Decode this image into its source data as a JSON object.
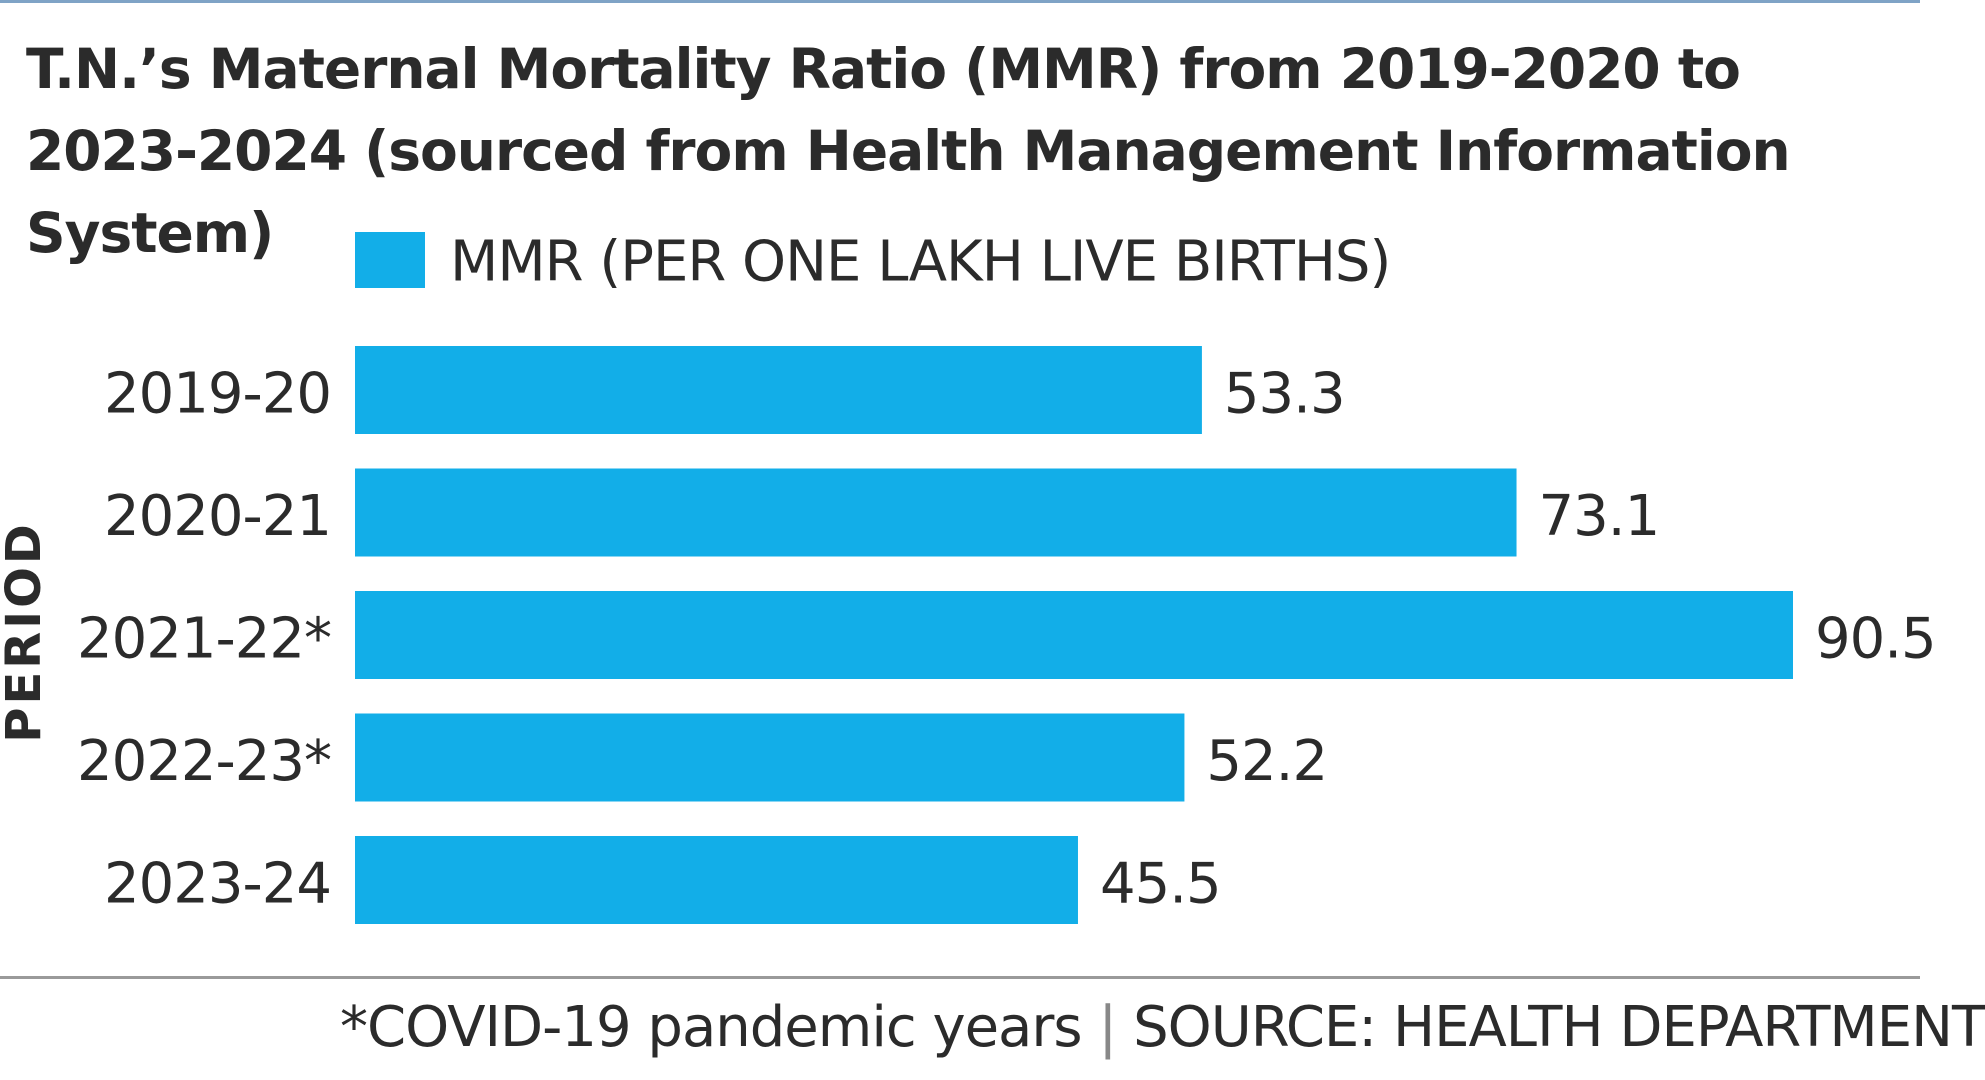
{
  "chart_data": {
    "type": "bar",
    "orientation": "horizontal",
    "title": "T.N.’s Maternal Mortality Ratio (MMR) from 2019-2020 to 2023-2024 (sourced from Health Management Information System)",
    "xlabel": "",
    "ylabel": "PERIOD",
    "categories": [
      "2019-20",
      "2020-21",
      "2021-22*",
      "2022-23*",
      "2023-24"
    ],
    "series": [
      {
        "name": "MMR (PER ONE LAKH LIVE BIRTHS)",
        "values": [
          53.3,
          73.1,
          90.5,
          52.2,
          45.5
        ],
        "value_labels": [
          "53.3",
          "73.1",
          "90.5",
          "52.2",
          "45.5"
        ],
        "color": "#12aee8"
      }
    ],
    "xlim": [
      0,
      90.5
    ],
    "grid": false,
    "legend": "top-left",
    "show_x_axis": false
  },
  "footer": {
    "note": "*COVID-19 pandemic years",
    "separator": "|",
    "source": "SOURCE: HEALTH DEPARTMENT"
  },
  "colors": {
    "bar": "#12aee8",
    "text": "#2b2b2b",
    "top_rule": "#7fa3c6",
    "bottom_rule": "#9a9a9a"
  }
}
